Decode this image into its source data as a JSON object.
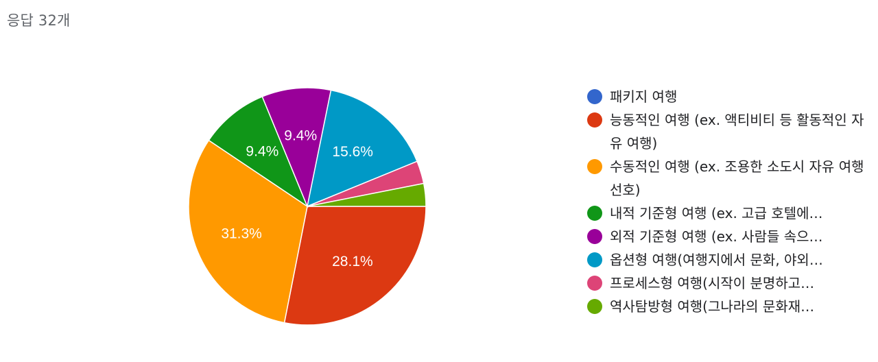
{
  "header": {
    "response_count": "응답 32개"
  },
  "chart_data": {
    "type": "pie",
    "total_responses": 32,
    "slices": [
      {
        "label": "패키지 여행",
        "percent": 0.0,
        "label_text": "",
        "color": "#3366cc"
      },
      {
        "label": "능동적인 여행 (ex. 액티비티 등 활동적인 자유 여행)",
        "percent": 28.1,
        "label_text": "28.1%",
        "color": "#dc3912"
      },
      {
        "label": "수동적인 여행 (ex. 조용한 소도시 자유 여행 선호)",
        "percent": 31.3,
        "label_text": "31.3%",
        "color": "#ff9900"
      },
      {
        "label": "내적 기준형 여행 (ex. 고급 호텔에…",
        "percent": 9.4,
        "label_text": "9.4%",
        "color": "#109618"
      },
      {
        "label": "외적 기준형 여행 (ex. 사람들 속으…",
        "percent": 9.4,
        "label_text": "9.4%",
        "color": "#990099"
      },
      {
        "label": "옵션형 여행(여행지에서 문화, 야외…",
        "percent": 15.6,
        "label_text": "15.6%",
        "color": "#0099c6"
      },
      {
        "label": "프로세스형 여행(시작이 분명하고…",
        "percent": 3.1,
        "label_text": "",
        "color": "#dd4477"
      },
      {
        "label": "역사탐방형 여행(그나라의 문화재…",
        "percent": 3.1,
        "label_text": "",
        "color": "#66aa00"
      }
    ]
  },
  "legend": {
    "items": [
      {
        "text": "패키지 여행",
        "color": "#3366cc"
      },
      {
        "text": "능동적인 여행 (ex. 액티비티 등 활동적인 자유 여행)",
        "color": "#dc3912"
      },
      {
        "text": "수동적인 여행 (ex. 조용한 소도시 자유 여행 선호)",
        "color": "#ff9900"
      },
      {
        "text": "내적 기준형 여행 (ex. 고급 호텔에…",
        "color": "#109618"
      },
      {
        "text": "외적 기준형 여행 (ex. 사람들 속으…",
        "color": "#990099"
      },
      {
        "text": "옵션형 여행(여행지에서 문화, 야외…",
        "color": "#0099c6"
      },
      {
        "text": "프로세스형 여행(시작이 분명하고…",
        "color": "#dd4477"
      },
      {
        "text": "역사탐방형 여행(그나라의 문화재…",
        "color": "#66aa00"
      }
    ]
  }
}
